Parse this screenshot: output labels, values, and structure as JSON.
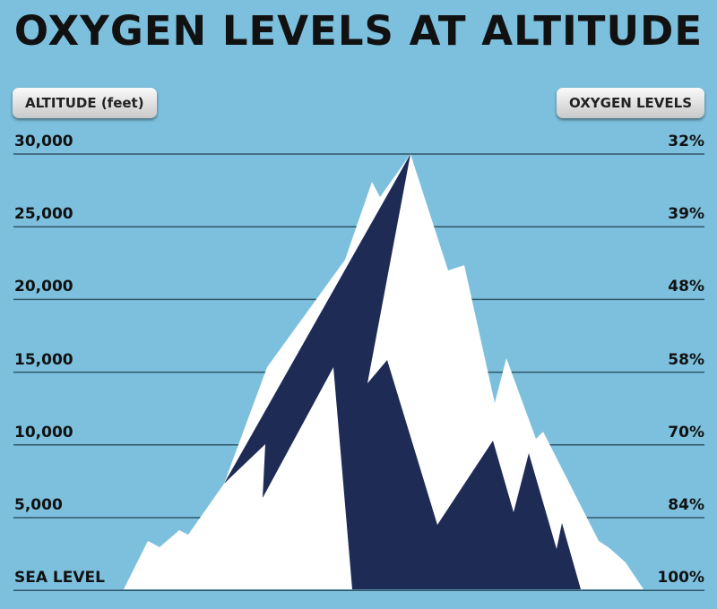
{
  "title": "OXYGEN LEVELS AT ALTITUDE",
  "headers": {
    "altitude": "ALTITUDE (feet)",
    "oxygen": "OXYGEN LEVELS"
  },
  "levels": [
    {
      "altitude": "30,000",
      "oxygen": "32%"
    },
    {
      "altitude": "25,000",
      "oxygen": "39%"
    },
    {
      "altitude": "20,000",
      "oxygen": "48%"
    },
    {
      "altitude": "15,000",
      "oxygen": "58%"
    },
    {
      "altitude": "10,000",
      "oxygen": "70%"
    },
    {
      "altitude": "5,000",
      "oxygen": "84%"
    },
    {
      "altitude": "SEA LEVEL",
      "oxygen": "100%"
    }
  ]
}
